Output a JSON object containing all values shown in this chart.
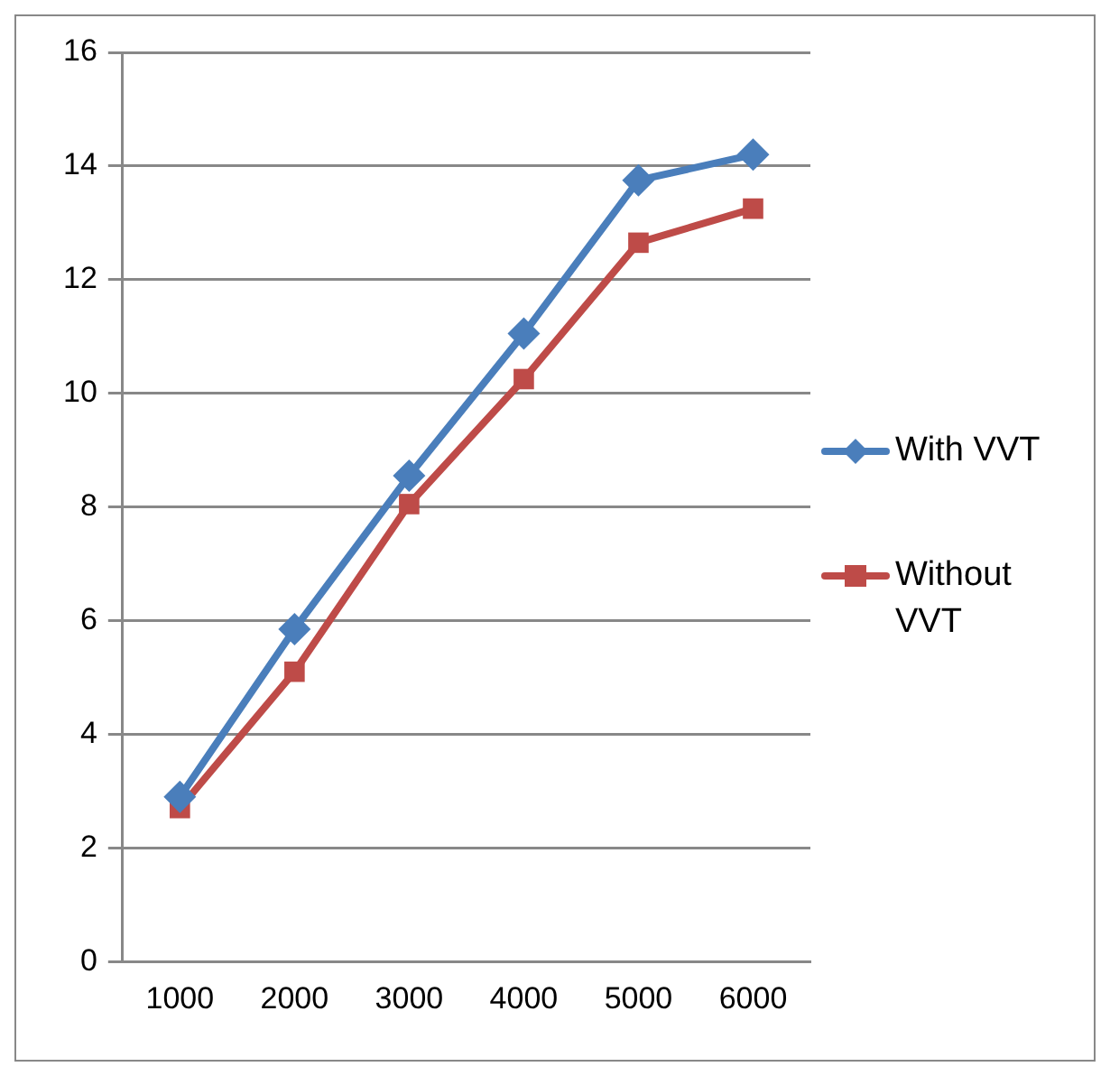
{
  "chart_data": {
    "type": "line",
    "categories": [
      "1000",
      "2000",
      "3000",
      "4000",
      "5000",
      "6000"
    ],
    "series": [
      {
        "name": "With VVT",
        "color": "#4a7ebb",
        "marker": "diamond",
        "values": [
          2.9,
          5.85,
          8.55,
          11.05,
          13.75,
          14.2
        ]
      },
      {
        "name": "Without VVT",
        "color": "#be4b48",
        "marker": "square",
        "values": [
          2.7,
          5.1,
          8.05,
          10.25,
          12.65,
          13.25
        ]
      }
    ],
    "ylim": [
      0,
      16
    ],
    "yticks": [
      0,
      2,
      4,
      6,
      8,
      10,
      12,
      14,
      16
    ],
    "grid": "y",
    "legend": "right"
  }
}
